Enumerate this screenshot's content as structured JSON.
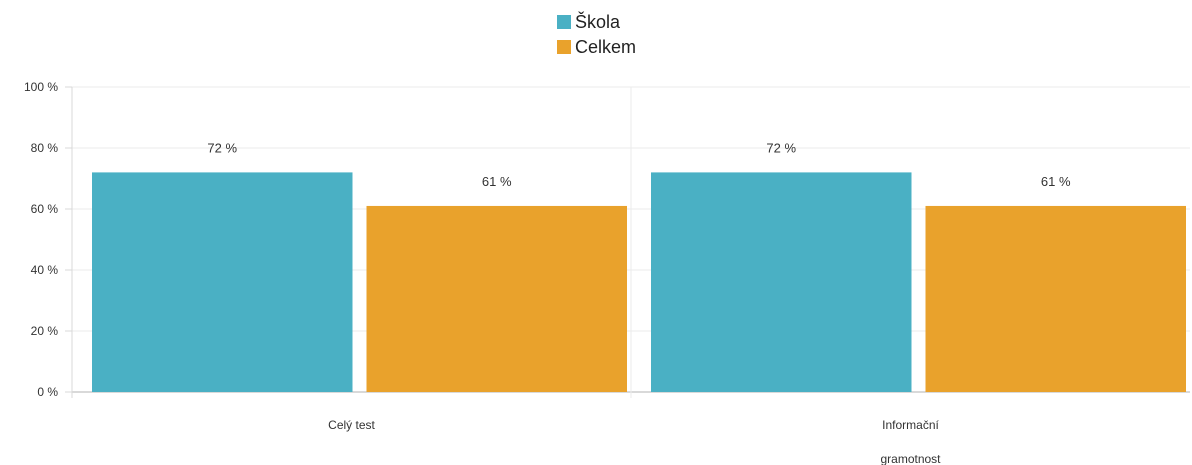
{
  "colors": {
    "school": "#4AB0C4",
    "total": "#E9A22C",
    "grid": "#EBEBEB",
    "axis": "#D9D9D9",
    "text": "#333333"
  },
  "chart_data": {
    "type": "bar",
    "title": "",
    "xlabel": "",
    "ylabel": "",
    "categories": [
      {
        "lines": [
          "Celý test"
        ]
      },
      {
        "lines": [
          "Informační",
          "gramotnost"
        ]
      }
    ],
    "series": [
      {
        "name": "Škola",
        "color": "#4AB0C4",
        "values": [
          72,
          72
        ],
        "labels": [
          "72 %",
          "72 %"
        ]
      },
      {
        "name": "Celkem",
        "color": "#E9A22C",
        "values": [
          61,
          61
        ],
        "labels": [
          "61 %",
          "61 %"
        ]
      }
    ],
    "ylim": [
      0,
      100
    ],
    "yticks": [
      {
        "value": 0,
        "label": "0 %"
      },
      {
        "value": 20,
        "label": "20 %"
      },
      {
        "value": 40,
        "label": "40 %"
      },
      {
        "value": 60,
        "label": "60 %"
      },
      {
        "value": 80,
        "label": "80 %"
      },
      {
        "value": 100,
        "label": "100 %"
      }
    ],
    "legend_position": "top-center",
    "grid": true
  }
}
